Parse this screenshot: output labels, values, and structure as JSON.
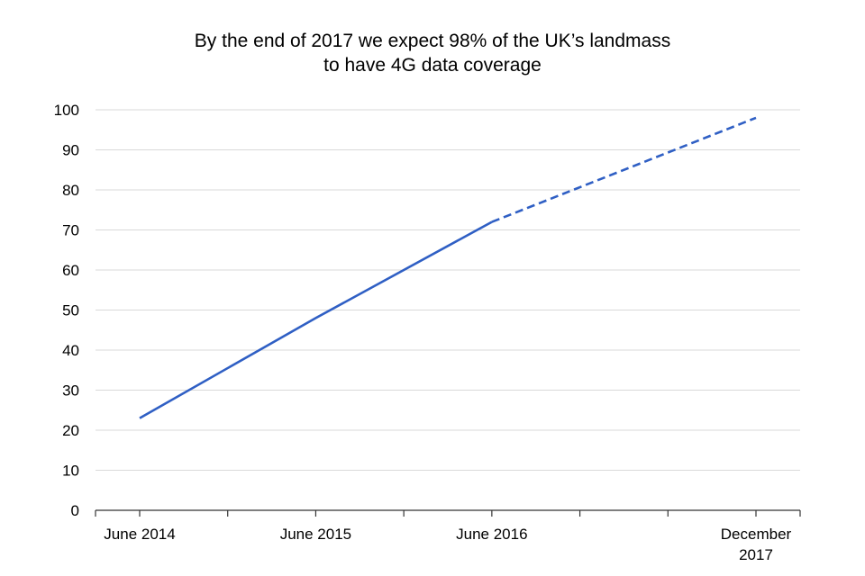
{
  "chart_data": {
    "type": "line",
    "title_lines": [
      "By the end of 2017 we expect 98% of the UK’s landmass",
      "to have 4G data coverage"
    ],
    "xlabel": "",
    "ylabel": "",
    "x_ticks": [
      {
        "label_lines": [
          "June 2014"
        ],
        "month_index": 0
      },
      {
        "label_lines": [
          "June 2015"
        ],
        "month_index": 12
      },
      {
        "label_lines": [
          "June 2016"
        ],
        "month_index": 24
      },
      {
        "label_lines": [
          "December",
          "2017"
        ],
        "month_index": 42
      }
    ],
    "ylim": [
      0,
      100
    ],
    "yticks": [
      0,
      10,
      20,
      30,
      40,
      50,
      60,
      70,
      80,
      90,
      100
    ],
    "grid": true,
    "series": [
      {
        "style": "solid",
        "color": "#2f5fc4",
        "points": [
          {
            "month_index": 0,
            "y": 23
          },
          {
            "month_index": 12,
            "y": 48
          },
          {
            "month_index": 24,
            "y": 72
          }
        ]
      },
      {
        "style": "dashed",
        "color": "#2f5fc4",
        "points": [
          {
            "month_index": 24,
            "y": 72
          },
          {
            "month_index": 42,
            "y": 98
          }
        ]
      }
    ]
  }
}
